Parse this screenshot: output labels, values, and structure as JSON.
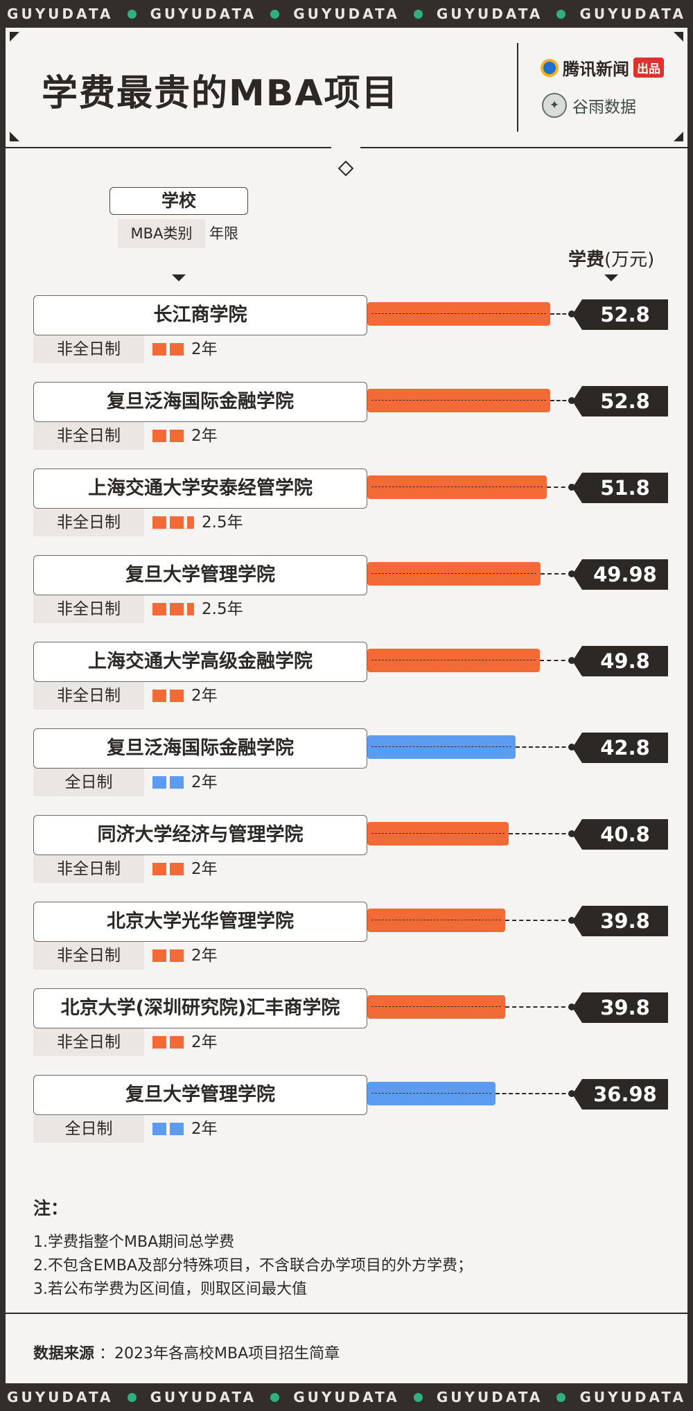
{
  "ticker": {
    "words": [
      "GUYUDATA",
      "GUYUDATA",
      "GUYUDATA",
      "GUYUDATA",
      "GUYUDATA"
    ]
  },
  "header": {
    "title": "学费最贵的MBA项目",
    "logo_tencent_text": "腾讯新闻",
    "logo_tencent_badge": "出品",
    "logo_guyu_text": "谷雨数据"
  },
  "legend": {
    "school": "学校",
    "category": "MBA类别",
    "years": "年限",
    "fee": "学费",
    "fee_unit": "(万元)"
  },
  "colors": {
    "part_time": "#f26a36",
    "full_time": "#5b9bf0",
    "dark": "#2c2826"
  },
  "chart_data": {
    "type": "bar",
    "orientation": "horizontal",
    "title": "学费最贵的MBA项目",
    "value_label": "学费(万元)",
    "xlim": [
      0,
      52.8
    ],
    "rows": [
      {
        "school": "长江商学院",
        "category": "非全日制",
        "years": 2,
        "years_label": "2年",
        "value": 52.8,
        "value_label": "52.8"
      },
      {
        "school": "复旦泛海国际金融学院",
        "category": "非全日制",
        "years": 2,
        "years_label": "2年",
        "value": 52.8,
        "value_label": "52.8"
      },
      {
        "school": "上海交通大学安泰经管学院",
        "category": "非全日制",
        "years": 2.5,
        "years_label": "2.5年",
        "value": 51.8,
        "value_label": "51.8"
      },
      {
        "school": "复旦大学管理学院",
        "category": "非全日制",
        "years": 2.5,
        "years_label": "2.5年",
        "value": 49.98,
        "value_label": "49.98"
      },
      {
        "school": "上海交通大学高级金融学院",
        "category": "非全日制",
        "years": 2,
        "years_label": "2年",
        "value": 49.8,
        "value_label": "49.8"
      },
      {
        "school": "复旦泛海国际金融学院",
        "category": "全日制",
        "years": 2,
        "years_label": "2年",
        "value": 42.8,
        "value_label": "42.8"
      },
      {
        "school": "同济大学经济与管理学院",
        "category": "非全日制",
        "years": 2,
        "years_label": "2年",
        "value": 40.8,
        "value_label": "40.8"
      },
      {
        "school": "北京大学光华管理学院",
        "category": "非全日制",
        "years": 2,
        "years_label": "2年",
        "value": 39.8,
        "value_label": "39.8"
      },
      {
        "school": "北京大学(深圳研究院)汇丰商学院",
        "category": "非全日制",
        "years": 2,
        "years_label": "2年",
        "value": 39.8,
        "value_label": "39.8"
      },
      {
        "school": "复旦大学管理学院",
        "category": "全日制",
        "years": 2,
        "years_label": "2年",
        "value": 36.98,
        "value_label": "36.98"
      }
    ]
  },
  "notes": {
    "title": "注：",
    "lines": [
      "1.学费指整个MBA期间总学费",
      "2.不包含EMBA及部分特殊项目，不含联合办学项目的外方学费；",
      "3.若公布学费为区间值，则取区间最大值"
    ]
  },
  "source": {
    "label": "数据来源",
    "text": "：2023年各高校MBA项目招生简章"
  }
}
